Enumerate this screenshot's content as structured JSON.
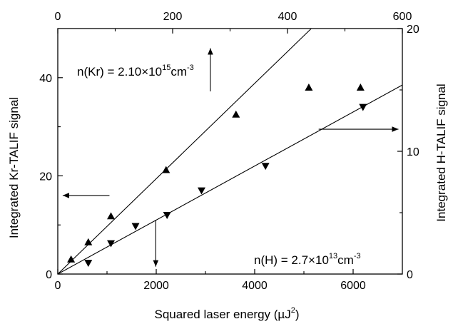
{
  "chart_data": {
    "type": "scatter",
    "axes": {
      "bottom": {
        "label": "Squared laser energy (µJ²)",
        "label_main": "Squared laser energy (",
        "label_unit": "µJ",
        "label_sup": "2",
        "label_close": ")",
        "range": [
          0,
          7000
        ],
        "ticks": [
          0,
          2000,
          4000,
          6000
        ]
      },
      "top": {
        "label": "",
        "range": [
          0,
          600
        ],
        "ticks": [
          0,
          200,
          400,
          600
        ]
      },
      "left": {
        "label": "Integrated Kr-TALIF signal",
        "range": [
          0,
          50
        ],
        "ticks": [
          0,
          20,
          40
        ]
      },
      "right": {
        "label": "Integrated H-TALIF signal",
        "range": [
          0,
          20
        ],
        "ticks": [
          0,
          10,
          20
        ]
      }
    },
    "grid": false,
    "series": [
      {
        "marker": "triangle-up",
        "x_axis": "bottom",
        "y_axis": "left",
        "points": [
          {
            "x": 270,
            "y": 3.0
          },
          {
            "x": 620,
            "y": 6.5
          },
          {
            "x": 1080,
            "y": 11.8
          },
          {
            "x": 2200,
            "y": 21.2
          },
          {
            "x": 3620,
            "y": 32.5
          },
          {
            "x": 5100,
            "y": 38.0
          },
          {
            "x": 6150,
            "y": 38.0
          }
        ],
        "fit_line": {
          "x": [
            0,
            5150
          ],
          "y": [
            0,
            50
          ]
        }
      },
      {
        "marker": "triangle-down",
        "x_axis": "bottom",
        "y_axis": "right",
        "points": [
          {
            "x": 620,
            "y": 0.9
          },
          {
            "x": 1080,
            "y": 2.5
          },
          {
            "x": 1580,
            "y": 3.9
          },
          {
            "x": 2220,
            "y": 4.8
          },
          {
            "x": 2920,
            "y": 6.8
          },
          {
            "x": 4220,
            "y": 8.8
          },
          {
            "x": 6200,
            "y": 13.6
          }
        ],
        "fit_line": {
          "x": [
            0,
            7000
          ],
          "y": [
            0,
            15.4
          ]
        }
      }
    ],
    "annotations": [
      {
        "key": "kr",
        "prefix": "n(Kr) = 2.10×10",
        "exponent": "15",
        "suffix": "cm",
        "suffix_exp": "-3"
      },
      {
        "key": "h",
        "prefix": "n(H) = 2.7×10",
        "exponent": "13",
        "suffix": "cm",
        "suffix_exp": "-3"
      }
    ]
  }
}
